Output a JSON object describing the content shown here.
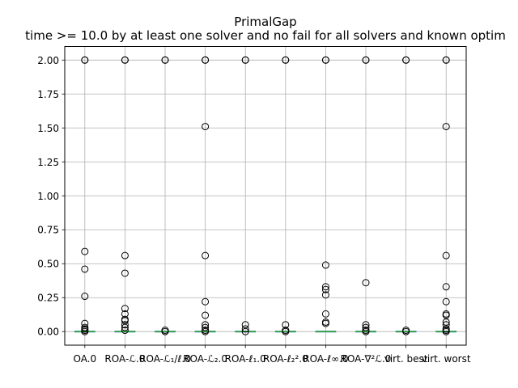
{
  "chart_data": {
    "type": "box",
    "title": "PrimalGap",
    "subtitle": "time >= 10.0 by at least one solver and no fail for all solvers and known optim",
    "xlabel": "",
    "ylabel": "",
    "ylim": [
      -0.1,
      2.1
    ],
    "yticks": [
      "0.00",
      "0.25",
      "0.50",
      "0.75",
      "1.00",
      "1.25",
      "1.50",
      "1.75",
      "2.00"
    ],
    "grid": true,
    "categories": [
      "OA.0",
      "ROA-ℒ.0",
      "ROA-ℒ₁/ℓ.0",
      "ROA-ℒ₂.0",
      "ROA-ℓ₁.0",
      "ROA-ℓ₂².0",
      "ROA-ℓ∞.0",
      "ROA-∇²ℒ.0",
      "virt. best",
      "virt. worst"
    ],
    "median_color": "#2ca02c",
    "box_color": "#1f77b4",
    "series": [
      {
        "box": [
          0,
          0,
          0,
          0,
          0
        ],
        "outliers": [
          2.0,
          2.0,
          0.59,
          0.46,
          0.26,
          0.06,
          0.03,
          0.02,
          0.01,
          0.0
        ]
      },
      {
        "box": [
          0,
          0,
          0,
          0,
          0
        ],
        "outliers": [
          2.0,
          2.0,
          0.56,
          0.43,
          0.17,
          0.13,
          0.09,
          0.08,
          0.05,
          0.03,
          0.01
        ]
      },
      {
        "box": [
          0,
          0,
          0,
          0,
          0
        ],
        "outliers": [
          2.0,
          2.0,
          0.01,
          0.0
        ]
      },
      {
        "box": [
          0,
          0,
          0,
          0,
          0
        ],
        "outliers": [
          2.0,
          2.0,
          1.51,
          0.56,
          0.22,
          0.12,
          0.05,
          0.03,
          0.01,
          0.0
        ]
      },
      {
        "box": [
          0,
          0,
          0,
          0,
          0
        ],
        "outliers": [
          2.0,
          2.0,
          0.05,
          0.02,
          0.0
        ]
      },
      {
        "box": [
          0,
          0,
          0,
          0,
          0
        ],
        "outliers": [
          2.0,
          2.0,
          0.05,
          0.01,
          0.0
        ]
      },
      {
        "box": [
          0,
          0,
          0,
          0,
          0
        ],
        "outliers": [
          2.0,
          2.0,
          0.49,
          0.33,
          0.31,
          0.27,
          0.13,
          0.07,
          0.06
        ]
      },
      {
        "box": [
          0,
          0,
          0,
          0,
          0
        ],
        "outliers": [
          2.0,
          2.0,
          0.36,
          0.05,
          0.03,
          0.01,
          0.0
        ]
      },
      {
        "box": [
          0,
          0,
          0,
          0,
          0
        ],
        "outliers": [
          2.0,
          2.0,
          0.01,
          0.0
        ]
      },
      {
        "box": [
          0,
          0,
          0,
          0,
          0
        ],
        "outliers": [
          2.0,
          2.0,
          1.51,
          0.56,
          0.33,
          0.22,
          0.13,
          0.12,
          0.07,
          0.05,
          0.02,
          0.01,
          0.0
        ]
      }
    ]
  }
}
